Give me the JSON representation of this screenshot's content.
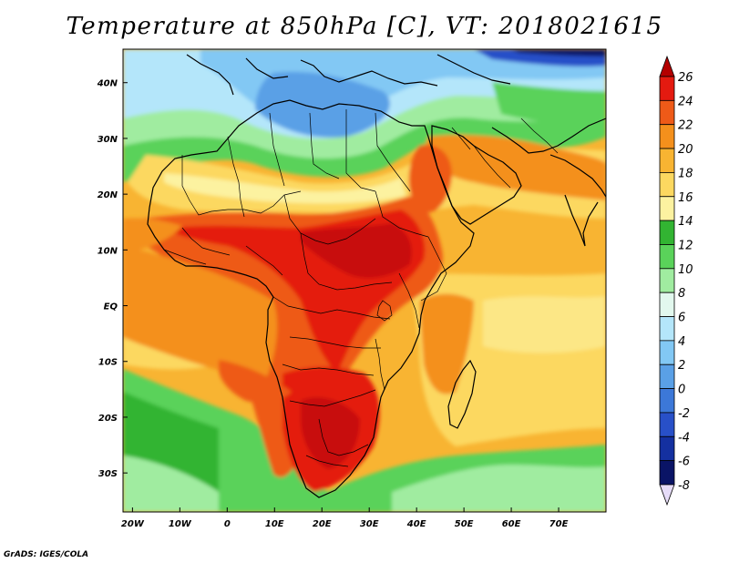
{
  "title": "Temperature at 850hPa [C], VT: 2018021615",
  "credit": "GrADS: IGES/COLA",
  "map": {
    "lon_range": [
      -22,
      80
    ],
    "lat_range": [
      -37,
      46
    ],
    "x_ticks": [
      {
        "lon": -20,
        "label": "20W"
      },
      {
        "lon": -10,
        "label": "10W"
      },
      {
        "lon": 0,
        "label": "0"
      },
      {
        "lon": 10,
        "label": "10E"
      },
      {
        "lon": 20,
        "label": "20E"
      },
      {
        "lon": 30,
        "label": "30E"
      },
      {
        "lon": 40,
        "label": "40E"
      },
      {
        "lon": 50,
        "label": "50E"
      },
      {
        "lon": 60,
        "label": "60E"
      },
      {
        "lon": 70,
        "label": "70E"
      }
    ],
    "y_ticks": [
      {
        "lat": 40,
        "label": "40N"
      },
      {
        "lat": 30,
        "label": "30N"
      },
      {
        "lat": 20,
        "label": "20N"
      },
      {
        "lat": 10,
        "label": "10N"
      },
      {
        "lat": 0,
        "label": "EQ"
      },
      {
        "lat": -10,
        "label": "10S"
      },
      {
        "lat": -20,
        "label": "20S"
      },
      {
        "lat": -30,
        "label": "30S"
      }
    ]
  },
  "colorbar": {
    "levels": [
      {
        "label": "26",
        "color": "#b40000"
      },
      {
        "label": "24",
        "color": "#e41a10"
      },
      {
        "label": "22",
        "color": "#ee5a18"
      },
      {
        "label": "20",
        "color": "#f4901c"
      },
      {
        "label": "18",
        "color": "#f8b432"
      },
      {
        "label": "16",
        "color": "#fcd860"
      },
      {
        "label": "14",
        "color": "#fcf2a0"
      },
      {
        "label": "12",
        "color": "#32b432"
      },
      {
        "label": "10",
        "color": "#5ad25a"
      },
      {
        "label": "8",
        "color": "#a0eca0"
      },
      {
        "label": "6",
        "color": "#e2f8ee"
      },
      {
        "label": "4",
        "color": "#b4e6fa"
      },
      {
        "label": "2",
        "color": "#82c8f4"
      },
      {
        "label": "0",
        "color": "#5aa0e6"
      },
      {
        "label": "-2",
        "color": "#3c78d8"
      },
      {
        "label": "-4",
        "color": "#2850c8"
      },
      {
        "label": "-6",
        "color": "#1430a0"
      },
      {
        "label": "-8",
        "color": "#0a1466"
      }
    ],
    "under_color": "#e6dcf8"
  }
}
